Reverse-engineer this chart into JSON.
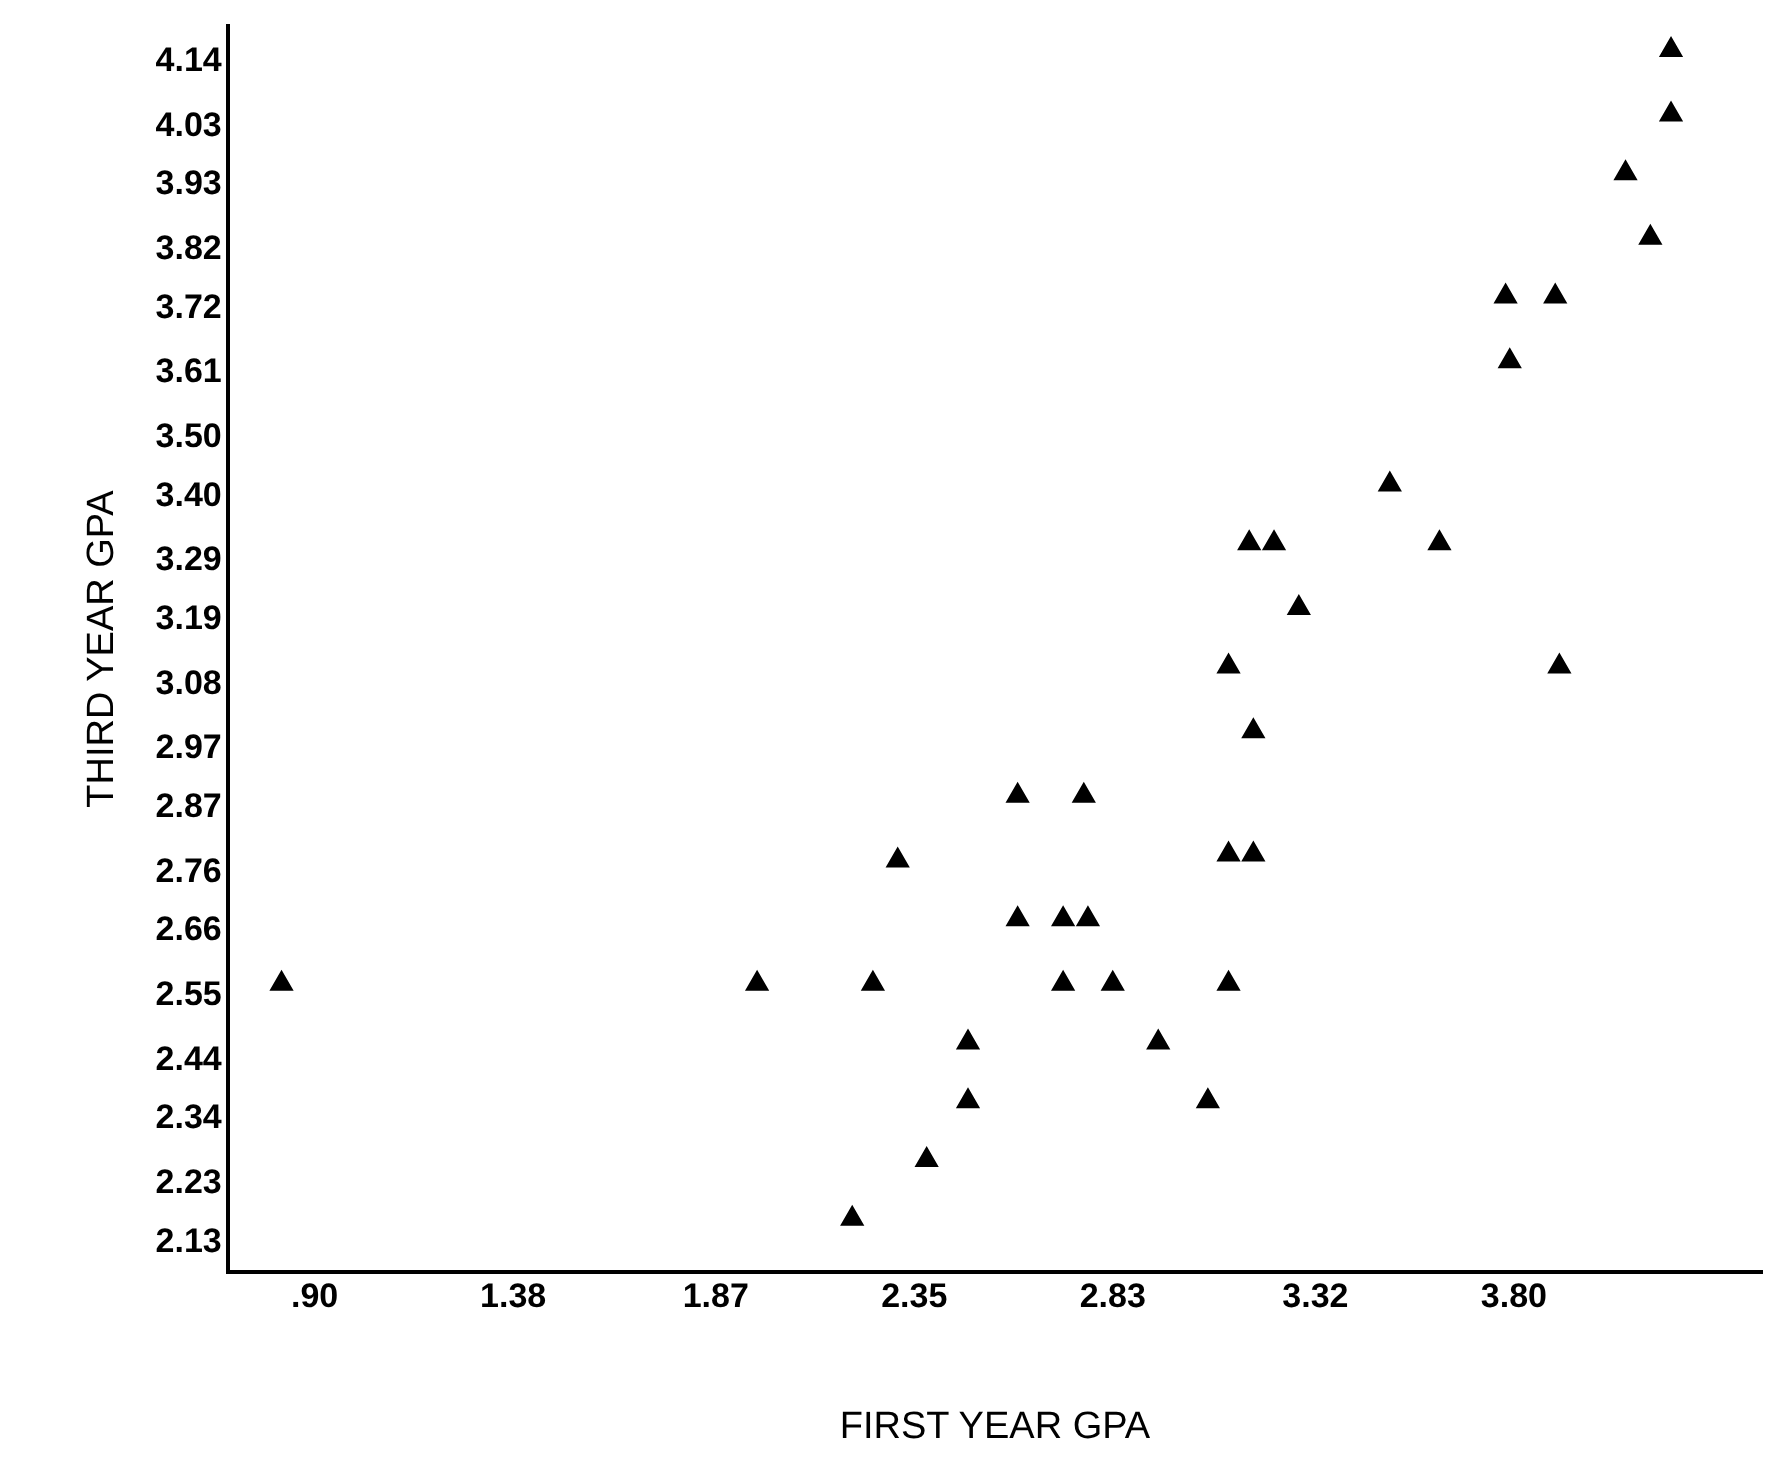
{
  "chart_data": {
    "type": "scatter",
    "xlabel": "FIRST YEAR GPA",
    "ylabel": "THIRD YEAR GPA",
    "marker": "triangle",
    "grid": false,
    "legend": false,
    "xlim": [
      0.69,
      4.4
    ],
    "ylim": [
      2.08,
      4.2
    ],
    "xticks": [
      {
        "value": 0.9,
        "label": ".90"
      },
      1.38,
      1.87,
      2.35,
      2.83,
      3.32,
      {
        "value": 3.8,
        "label": "3.80"
      }
    ],
    "yticks": [
      2.13,
      2.23,
      2.34,
      2.44,
      2.55,
      2.66,
      2.76,
      2.87,
      2.97,
      3.08,
      3.19,
      3.29,
      {
        "value": 3.4,
        "label": "3.40"
      },
      {
        "value": 3.5,
        "label": "3.50"
      },
      3.61,
      3.72,
      3.82,
      3.93,
      4.03,
      4.14
    ],
    "series": [
      {
        "color": "#000000",
        "x": [
          4.18,
          4.18,
          4.07,
          4.13,
          3.78,
          3.9,
          3.79,
          3.5,
          3.16,
          3.22,
          3.62,
          3.28,
          3.11,
          3.91,
          3.17,
          2.6,
          2.76,
          2.31,
          3.11,
          3.17,
          2.6,
          2.71,
          2.77,
          0.82,
          1.97,
          2.25,
          2.71,
          2.83,
          3.11,
          2.48,
          2.94,
          2.48,
          3.06,
          2.38,
          2.2
        ],
        "values": [
          4.16,
          4.05,
          3.95,
          3.84,
          3.74,
          3.74,
          3.63,
          3.42,
          3.32,
          3.32,
          3.32,
          3.21,
          3.11,
          3.11,
          3.0,
          2.89,
          2.89,
          2.78,
          2.79,
          2.79,
          2.68,
          2.68,
          2.68,
          2.57,
          2.57,
          2.57,
          2.57,
          2.57,
          2.57,
          2.47,
          2.47,
          2.37,
          2.37,
          2.27,
          2.17
        ]
      }
    ]
  }
}
